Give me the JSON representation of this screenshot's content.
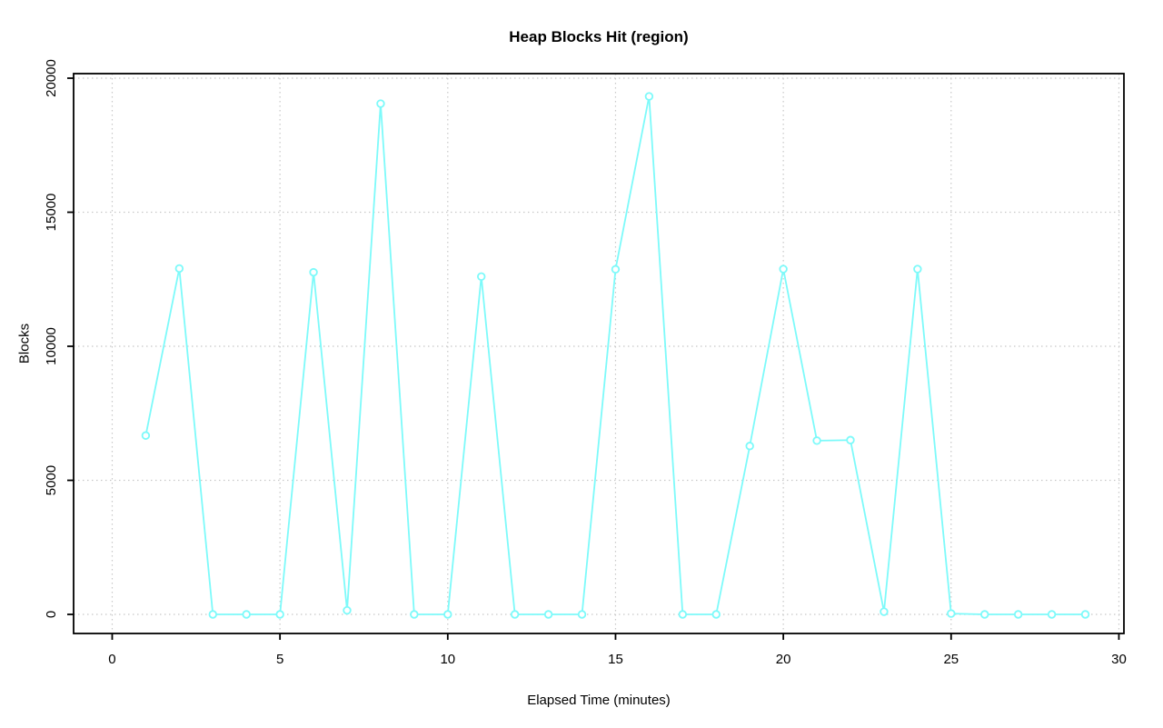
{
  "chart_data": {
    "type": "line",
    "title": "Heap Blocks Hit (region)",
    "xlabel": "Elapsed Time (minutes)",
    "ylabel": "Blocks",
    "x": [
      1,
      2,
      3,
      4,
      5,
      6,
      7,
      8,
      9,
      10,
      11,
      12,
      13,
      14,
      15,
      16,
      17,
      18,
      19,
      20,
      21,
      22,
      23,
      24,
      25,
      26,
      27,
      28,
      29
    ],
    "y": [
      6670,
      12900,
      0,
      0,
      0,
      12760,
      150,
      19050,
      0,
      0,
      12600,
      0,
      0,
      0,
      12870,
      19320,
      0,
      0,
      6280,
      12880,
      6480,
      6500,
      100,
      12880,
      30,
      0,
      0,
      0,
      0
    ],
    "x_ticks": [
      0,
      5,
      10,
      15,
      20,
      25,
      30
    ],
    "y_ticks": [
      0,
      5000,
      10000,
      15000,
      20000
    ],
    "xlim": [
      -1.15,
      30.15
    ],
    "ylim": [
      -712,
      20170
    ],
    "grid": true,
    "grid_style": "dotted",
    "legend_position": "none",
    "marker": "open-circle",
    "colors": {
      "series": "#7DFAFA",
      "grid": "#C8C8C8",
      "axis": "#000000",
      "text": "#000000",
      "background": "#FFFFFF"
    }
  }
}
